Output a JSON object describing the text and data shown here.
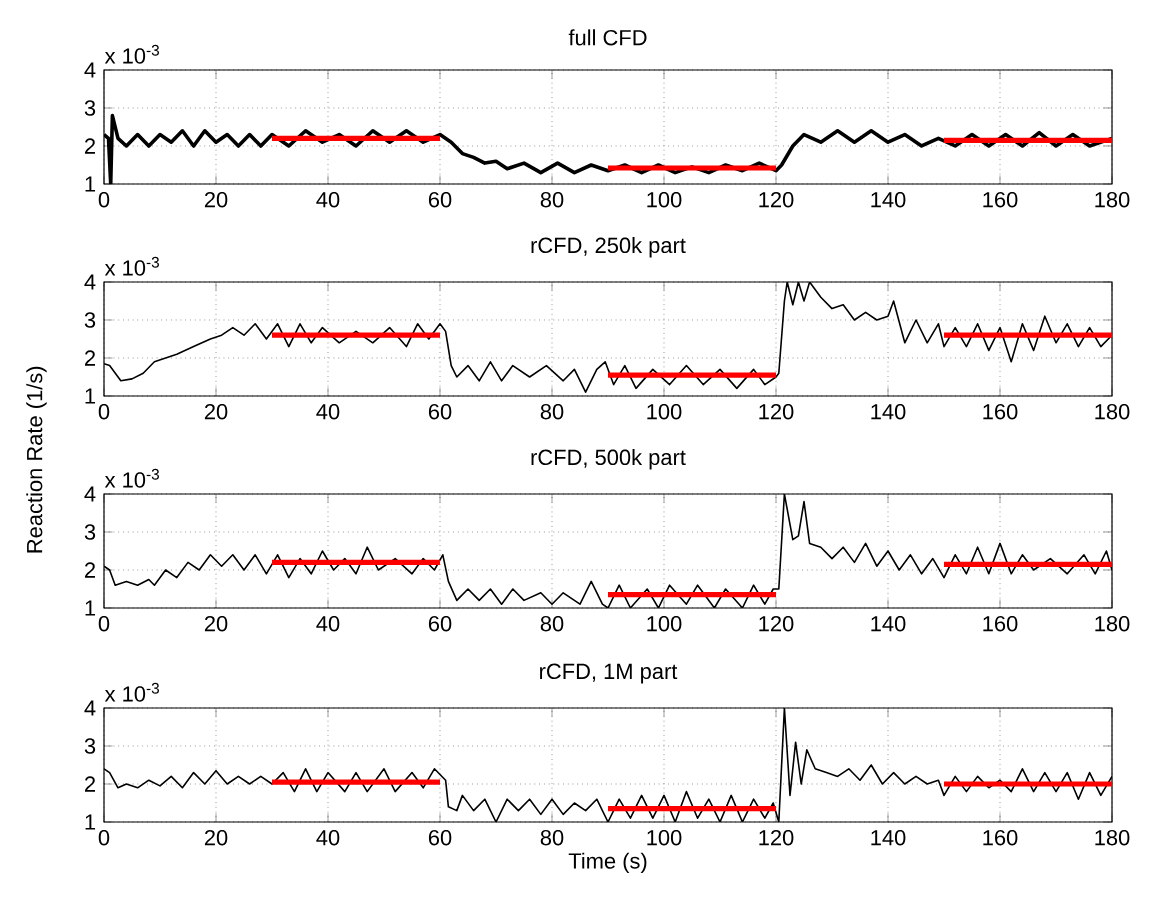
{
  "chart_data": [
    {
      "type": "line",
      "title": "full CFD",
      "annotations": [
        "x 10$^{-3}$"
      ],
      "xlim": [
        0,
        180
      ],
      "ylim": [
        1,
        4
      ],
      "xticks": [
        0,
        20,
        40,
        60,
        80,
        100,
        120,
        140,
        160,
        180
      ],
      "yticks": [
        1,
        2,
        3,
        4
      ],
      "grid": true,
      "series": [
        {
          "color": "#000000",
          "x": [
            0,
            0.8,
            1.2,
            1.5,
            2.5,
            4,
            6,
            8,
            10,
            12,
            14,
            16,
            18,
            20,
            22,
            24,
            26,
            28,
            30,
            33,
            36,
            39,
            42,
            45,
            48,
            51,
            54,
            57,
            60,
            62,
            64,
            66,
            68,
            70,
            72,
            75,
            78,
            81,
            84,
            87,
            90,
            93,
            96,
            99,
            102,
            105,
            108,
            111,
            114,
            117,
            120,
            121,
            123,
            125,
            128,
            131,
            134,
            137,
            140,
            143,
            146,
            149,
            152,
            155,
            158,
            161,
            164,
            167,
            170,
            173,
            176,
            180
          ],
          "values": [
            2.3,
            2.2,
            1.0,
            2.8,
            2.2,
            2.0,
            2.3,
            2.0,
            2.3,
            2.1,
            2.4,
            2.0,
            2.4,
            2.1,
            2.3,
            2.0,
            2.3,
            2.0,
            2.3,
            2.0,
            2.4,
            2.1,
            2.3,
            2.0,
            2.4,
            2.1,
            2.4,
            2.1,
            2.3,
            2.1,
            1.8,
            1.7,
            1.55,
            1.6,
            1.4,
            1.55,
            1.3,
            1.55,
            1.3,
            1.5,
            1.35,
            1.5,
            1.3,
            1.5,
            1.3,
            1.45,
            1.3,
            1.5,
            1.35,
            1.55,
            1.35,
            1.5,
            2.0,
            2.3,
            2.1,
            2.4,
            2.1,
            2.4,
            2.1,
            2.3,
            2.0,
            2.2,
            2.0,
            2.3,
            2.0,
            2.3,
            2.0,
            2.35,
            2.0,
            2.3,
            2.0,
            2.2
          ]
        },
        {
          "color": "#ff0000",
          "x": [
            30,
            60,
            75,
            90,
            120,
            135,
            150,
            180
          ],
          "values": [
            2.2,
            2.2,
            null,
            1.42,
            1.42,
            null,
            2.15,
            2.15
          ]
        }
      ]
    },
    {
      "type": "line",
      "title": "rCFD, 250k part",
      "annotations": [
        "x 10$^{-3}$"
      ],
      "xlim": [
        0,
        180
      ],
      "ylim": [
        1,
        4
      ],
      "xticks": [
        0,
        20,
        40,
        60,
        80,
        100,
        120,
        140,
        160,
        180
      ],
      "yticks": [
        1,
        2,
        3,
        4
      ],
      "grid": true,
      "series": [
        {
          "color": "#000000",
          "x": [
            0,
            1,
            3,
            5,
            7,
            9,
            11,
            13,
            16,
            19,
            21,
            23,
            25,
            27,
            29,
            31,
            33,
            35,
            37,
            39,
            42,
            45,
            48,
            51,
            54,
            56,
            58,
            60,
            61,
            62,
            63,
            65,
            67,
            69,
            71,
            73,
            76,
            79,
            82,
            84,
            86,
            88,
            89.5,
            91,
            93,
            95,
            98,
            101,
            104,
            107,
            110,
            113,
            116,
            118,
            120,
            120.5,
            121.5,
            122,
            123,
            124,
            125,
            126,
            128,
            130,
            132,
            134,
            136,
            138,
            140,
            141,
            143,
            145,
            147,
            149,
            150,
            152,
            154,
            156,
            158,
            160,
            162,
            164,
            166,
            168,
            170,
            172,
            174,
            176,
            178,
            180
          ],
          "values": [
            1.85,
            1.8,
            1.4,
            1.45,
            1.6,
            1.9,
            2.0,
            2.1,
            2.3,
            2.5,
            2.6,
            2.8,
            2.6,
            2.9,
            2.5,
            2.9,
            2.3,
            2.9,
            2.4,
            2.8,
            2.4,
            2.7,
            2.4,
            2.8,
            2.3,
            2.9,
            2.5,
            2.9,
            2.7,
            1.8,
            1.5,
            1.8,
            1.4,
            1.9,
            1.4,
            1.8,
            1.5,
            1.8,
            1.4,
            1.7,
            1.1,
            1.7,
            1.9,
            1.3,
            1.8,
            1.2,
            1.7,
            1.3,
            1.8,
            1.3,
            1.7,
            1.2,
            1.7,
            1.3,
            1.5,
            1.6,
            3.5,
            4.0,
            3.4,
            4.0,
            3.5,
            4.0,
            3.6,
            3.3,
            3.4,
            3.0,
            3.2,
            3.0,
            3.1,
            3.5,
            2.4,
            3.0,
            2.4,
            2.9,
            2.3,
            2.8,
            2.3,
            2.9,
            2.2,
            2.8,
            1.9,
            2.9,
            2.2,
            3.1,
            2.4,
            2.9,
            2.3,
            2.8,
            2.3,
            2.6
          ]
        },
        {
          "color": "#ff0000",
          "x": [
            30,
            60,
            75,
            90,
            120,
            135,
            150,
            180
          ],
          "values": [
            2.6,
            2.6,
            null,
            1.55,
            1.55,
            null,
            2.6,
            2.6
          ]
        }
      ]
    },
    {
      "type": "line",
      "title": "rCFD, 500k part",
      "ylabel": "Reaction Rate (1/s)",
      "annotations": [
        "x 10$^{-3}$"
      ],
      "xlim": [
        0,
        180
      ],
      "ylim": [
        1,
        4
      ],
      "xticks": [
        0,
        20,
        40,
        60,
        80,
        100,
        120,
        140,
        160,
        180
      ],
      "yticks": [
        1,
        2,
        3,
        4
      ],
      "grid": true,
      "series": [
        {
          "color": "#000000",
          "x": [
            0,
            1,
            2,
            4,
            6,
            8,
            9,
            11,
            13,
            15,
            17,
            19,
            21,
            23,
            25,
            27,
            29,
            31,
            33,
            35,
            37,
            39,
            41,
            43,
            45,
            47,
            49,
            52,
            55,
            57,
            59,
            60.5,
            61.5,
            63,
            65,
            67,
            69,
            71,
            73,
            75,
            78,
            80,
            82,
            85,
            87,
            89,
            90,
            92,
            94,
            97,
            99,
            101,
            104,
            106,
            109,
            111,
            114,
            116,
            118,
            119.5,
            120.5,
            121.5,
            123,
            124,
            125,
            126,
            128,
            130,
            132,
            134,
            136,
            138,
            140,
            142,
            144,
            146,
            148,
            150,
            152,
            154,
            156,
            158,
            160,
            162,
            164,
            166,
            169,
            172,
            175,
            177,
            179,
            180
          ],
          "values": [
            2.1,
            2.0,
            1.6,
            1.7,
            1.6,
            1.75,
            1.6,
            2.0,
            1.8,
            2.2,
            2.0,
            2.4,
            2.1,
            2.4,
            2.0,
            2.4,
            1.9,
            2.4,
            1.8,
            2.3,
            1.9,
            2.5,
            2.0,
            2.3,
            1.9,
            2.6,
            2.0,
            2.3,
            1.9,
            2.3,
            2.0,
            2.4,
            1.7,
            1.2,
            1.5,
            1.2,
            1.5,
            1.1,
            1.5,
            1.2,
            1.4,
            1.1,
            1.4,
            1.1,
            1.7,
            1.1,
            1.0,
            1.6,
            1.0,
            1.5,
            1.0,
            1.6,
            1.1,
            1.6,
            1.0,
            1.5,
            1.0,
            1.6,
            1.1,
            1.5,
            1.5,
            4.0,
            2.8,
            2.9,
            3.8,
            2.7,
            2.6,
            2.3,
            2.6,
            2.2,
            2.7,
            2.1,
            2.5,
            2.0,
            2.4,
            1.9,
            2.3,
            1.8,
            2.4,
            1.9,
            2.6,
            1.9,
            2.7,
            1.9,
            2.4,
            2.0,
            2.3,
            1.9,
            2.4,
            1.9,
            2.5,
            2.0
          ]
        },
        {
          "color": "#ff0000",
          "x": [
            30,
            60,
            75,
            90,
            120,
            135,
            150,
            180
          ],
          "values": [
            2.2,
            2.2,
            null,
            1.35,
            1.35,
            null,
            2.15,
            2.15
          ]
        }
      ]
    },
    {
      "type": "line",
      "title": "rCFD, 1M part",
      "xlabel": "Time (s)",
      "annotations": [
        "x 10$^{-3}$"
      ],
      "xlim": [
        0,
        180
      ],
      "ylim": [
        1,
        4
      ],
      "xticks": [
        0,
        20,
        40,
        60,
        80,
        100,
        120,
        140,
        160,
        180
      ],
      "yticks": [
        1,
        2,
        3,
        4
      ],
      "grid": true,
      "series": [
        {
          "color": "#000000",
          "x": [
            0,
            1,
            2.5,
            4,
            6,
            8,
            10,
            12,
            14,
            16,
            18,
            20,
            22,
            24,
            26,
            28,
            30,
            32,
            34,
            36,
            38,
            40,
            43,
            45,
            47,
            50,
            52,
            55,
            57,
            59,
            61,
            61.5,
            63,
            64,
            66,
            68,
            70,
            72,
            74,
            76,
            78,
            80,
            82,
            84,
            86,
            88,
            90,
            92,
            94,
            96,
            98,
            100,
            102,
            104,
            106,
            108,
            110,
            112,
            114,
            116,
            118,
            119.5,
            120.5,
            121.5,
            122.5,
            123.5,
            124.5,
            125.5,
            127,
            129,
            131,
            133,
            135,
            137,
            139,
            141,
            143,
            145,
            147,
            149,
            150,
            152,
            154,
            156,
            158,
            160,
            162,
            164,
            166,
            168,
            170,
            172,
            174,
            176,
            178,
            180
          ],
          "values": [
            2.4,
            2.3,
            1.9,
            2.0,
            1.9,
            2.1,
            1.95,
            2.2,
            1.9,
            2.3,
            2.0,
            2.35,
            2.0,
            2.2,
            2.0,
            2.2,
            2.0,
            2.3,
            1.8,
            2.4,
            1.8,
            2.3,
            1.8,
            2.3,
            1.8,
            2.4,
            1.8,
            2.3,
            1.9,
            2.4,
            2.1,
            1.4,
            1.3,
            1.7,
            1.3,
            1.6,
            1.0,
            1.6,
            1.3,
            1.6,
            1.2,
            1.6,
            1.2,
            1.5,
            1.3,
            1.6,
            1.0,
            1.6,
            1.1,
            1.7,
            1.1,
            1.7,
            1.0,
            1.8,
            1.1,
            1.6,
            1.0,
            1.7,
            1.0,
            1.6,
            1.1,
            1.5,
            1.0,
            4.0,
            1.7,
            3.1,
            2.0,
            2.9,
            2.4,
            2.3,
            2.2,
            2.4,
            2.1,
            2.5,
            2.0,
            2.3,
            2.0,
            2.2,
            2.0,
            2.1,
            1.7,
            2.2,
            1.8,
            2.2,
            1.9,
            2.1,
            1.8,
            2.4,
            1.8,
            2.3,
            1.8,
            2.3,
            1.6,
            2.3,
            1.7,
            2.2
          ]
        },
        {
          "color": "#ff0000",
          "x": [
            30,
            60,
            75,
            90,
            120,
            135,
            150,
            180
          ],
          "values": [
            2.05,
            2.05,
            null,
            1.35,
            1.35,
            null,
            2.0,
            2.0
          ]
        }
      ]
    }
  ]
}
